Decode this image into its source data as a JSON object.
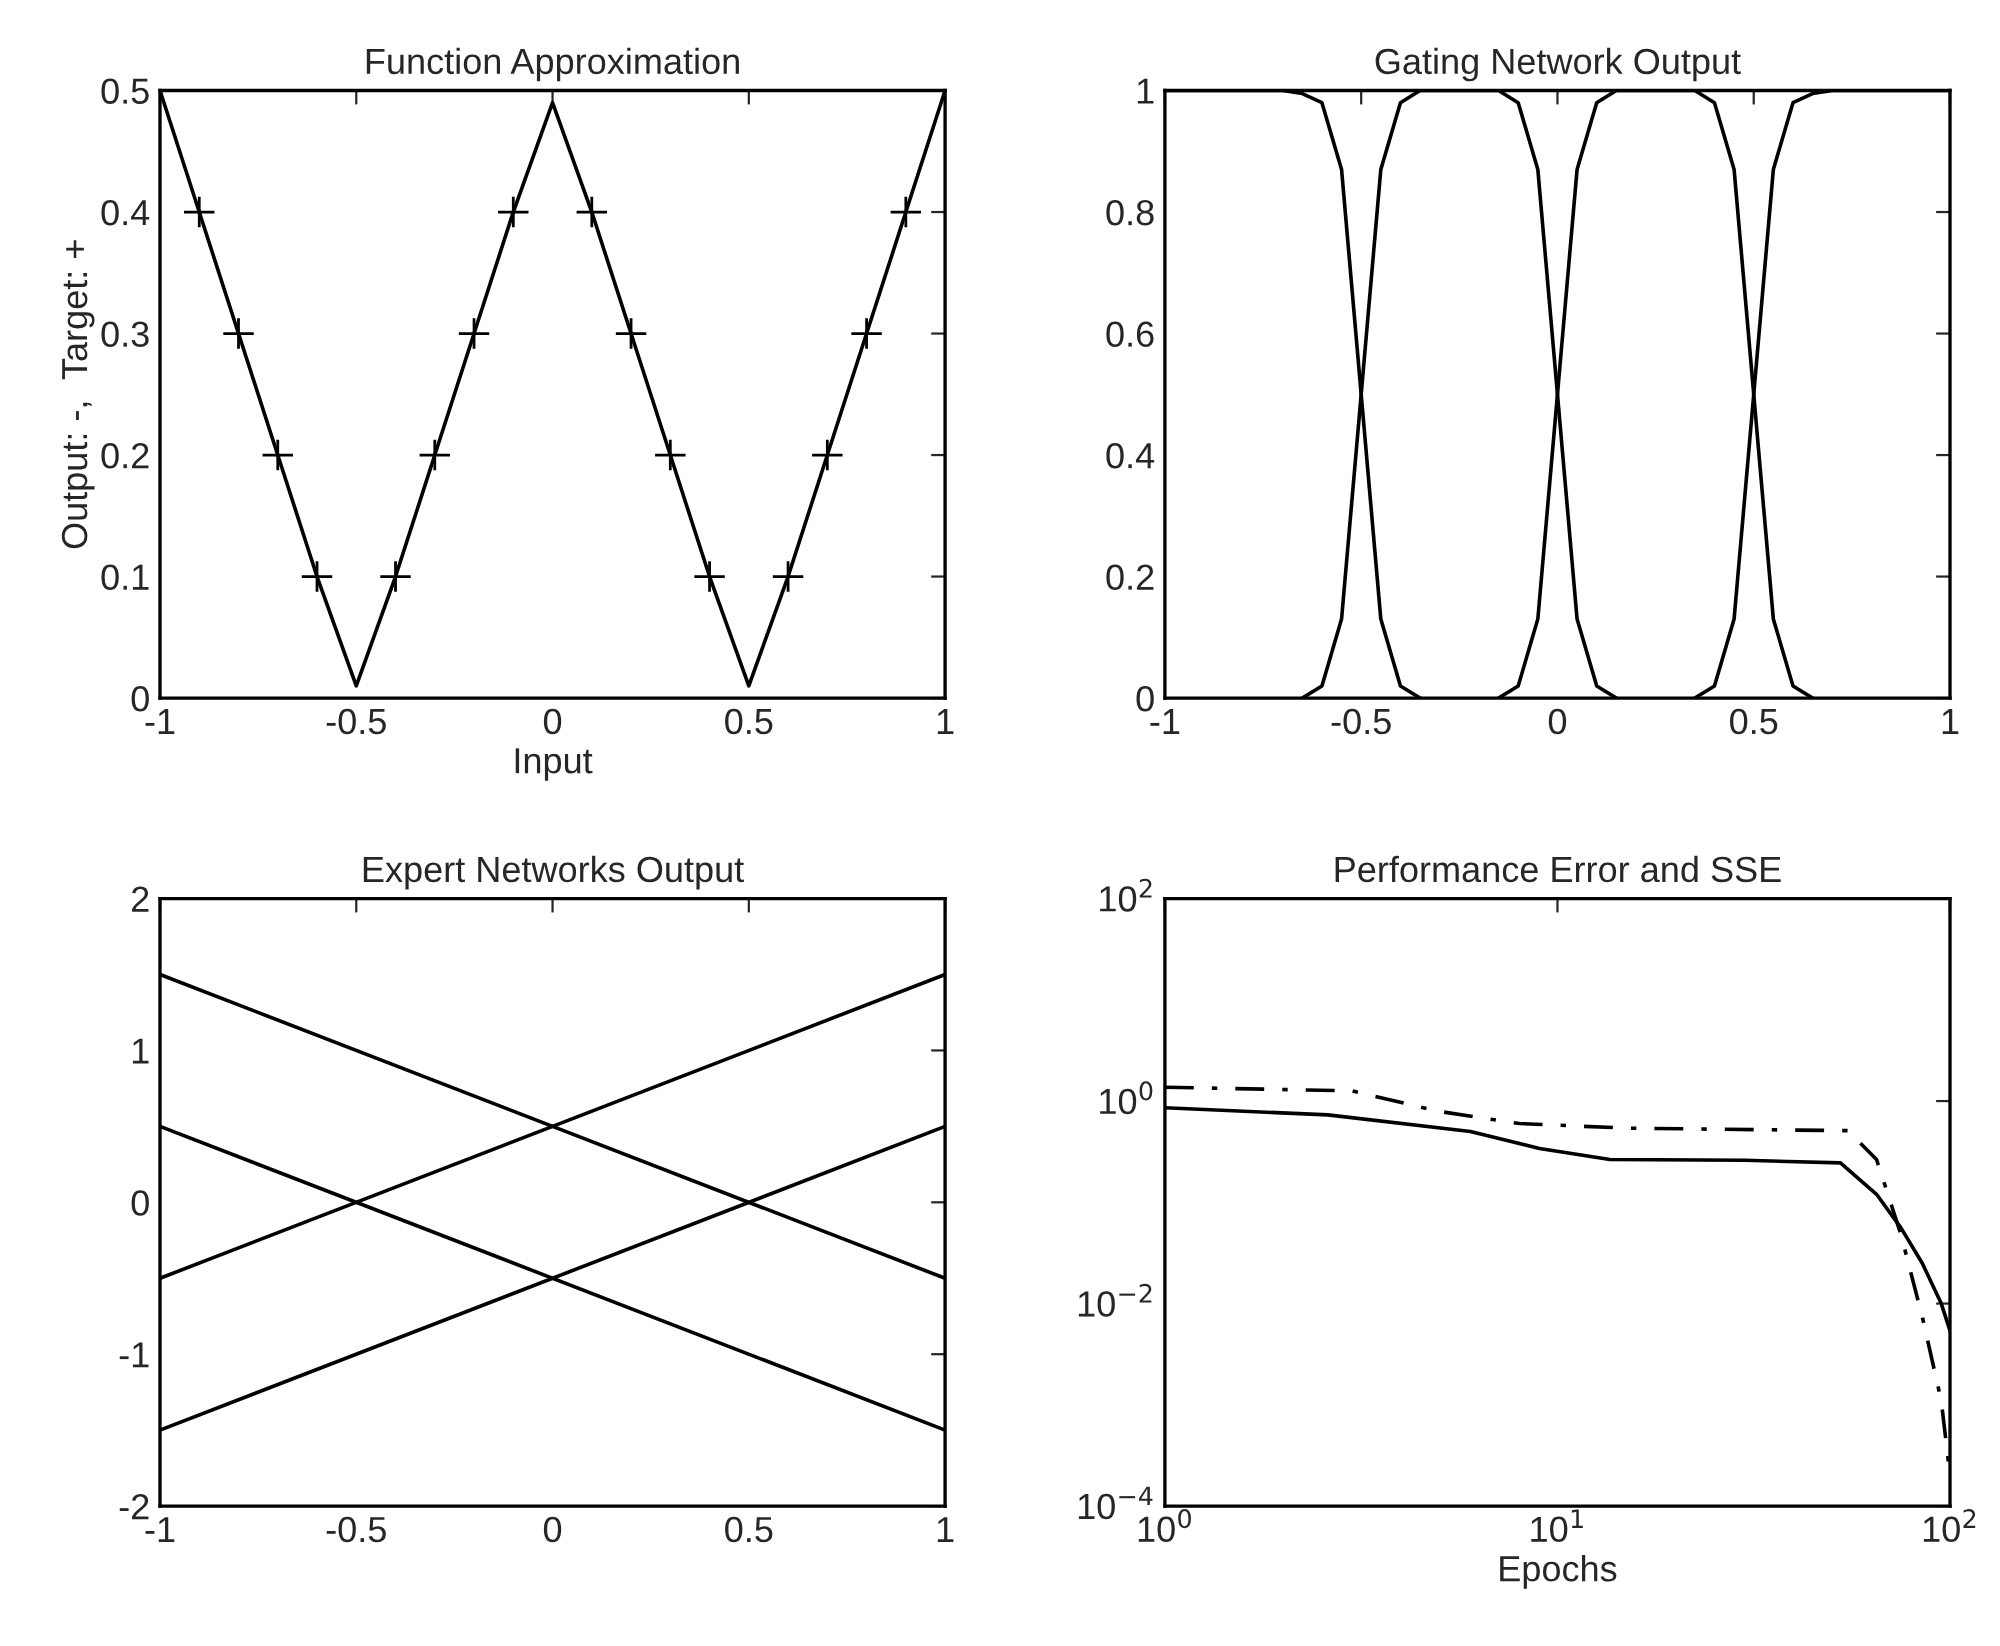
{
  "chart_data": [
    {
      "type": "line",
      "title": "Function Approximation",
      "xlabel": "Input",
      "ylabel": "Output: -,  Target: +",
      "xlim": [
        -1,
        1
      ],
      "ylim": [
        0,
        0.5
      ],
      "xticks": [
        -1,
        -0.5,
        0,
        0.5,
        1
      ],
      "yticks": [
        0,
        0.1,
        0.2,
        0.3,
        0.4,
        0.5
      ],
      "grid": false,
      "legend": false,
      "series": [
        {
          "color": "#000000",
          "line_style": "solid",
          "x": [
            -1,
            -0.9,
            -0.8,
            -0.7,
            -0.6,
            -0.5,
            -0.4,
            -0.3,
            -0.2,
            -0.1,
            0,
            0.1,
            0.2,
            0.3,
            0.4,
            0.5,
            0.6,
            0.7,
            0.8,
            0.9,
            1
          ],
          "values": [
            0.5,
            0.4,
            0.3,
            0.2,
            0.1,
            0.01,
            0.1,
            0.2,
            0.3,
            0.4,
            0.49,
            0.4,
            0.3,
            0.2,
            0.1,
            0.01,
            0.1,
            0.2,
            0.3,
            0.4,
            0.5
          ]
        },
        {
          "type": "scatter",
          "color": "#000000",
          "marker": "cross",
          "x": [
            -0.9,
            -0.8,
            -0.7,
            -0.6,
            -0.4,
            -0.3,
            -0.2,
            -0.1,
            0.1,
            0.2,
            0.3,
            0.4,
            0.6,
            0.7,
            0.8,
            0.9
          ],
          "values": [
            0.4,
            0.3,
            0.2,
            0.1,
            0.1,
            0.2,
            0.3,
            0.4,
            0.4,
            0.3,
            0.2,
            0.1,
            0.1,
            0.2,
            0.3,
            0.4
          ]
        }
      ]
    },
    {
      "type": "line",
      "title": "Gating Network Output",
      "xlim": [
        -1,
        1
      ],
      "ylim": [
        0,
        1
      ],
      "xticks": [
        -1,
        -0.5,
        0,
        0.5,
        1
      ],
      "yticks": [
        0,
        0.2,
        0.4,
        0.6,
        0.8,
        1
      ],
      "grid": false,
      "legend": false,
      "series": [
        {
          "color": "#000000",
          "x": [
            -1,
            -0.7,
            -0.65,
            -0.6,
            -0.55,
            -0.5,
            -0.45,
            -0.4,
            -0.35
          ],
          "values": [
            1,
            1,
            0.995,
            0.98,
            0.87,
            0.5,
            0.13,
            0.02,
            0.0
          ]
        },
        {
          "color": "#000000",
          "x": [
            -0.65,
            -0.6,
            -0.55,
            -0.5,
            -0.45,
            -0.4,
            -0.35,
            -0.15,
            -0.1,
            -0.05,
            0,
            0.05,
            0.1,
            0.15
          ],
          "values": [
            0,
            0.02,
            0.13,
            0.5,
            0.87,
            0.98,
            1,
            1,
            0.98,
            0.87,
            0.5,
            0.13,
            0.02,
            0
          ]
        },
        {
          "color": "#000000",
          "x": [
            -0.15,
            -0.1,
            -0.05,
            0,
            0.05,
            0.1,
            0.15,
            0.35,
            0.4,
            0.45,
            0.5,
            0.55,
            0.6,
            0.65
          ],
          "values": [
            0,
            0.02,
            0.13,
            0.5,
            0.87,
            0.98,
            1,
            1,
            0.98,
            0.87,
            0.5,
            0.13,
            0.02,
            0
          ]
        },
        {
          "color": "#000000",
          "x": [
            0.35,
            0.4,
            0.45,
            0.5,
            0.55,
            0.6,
            0.65,
            0.7,
            1
          ],
          "values": [
            0,
            0.02,
            0.13,
            0.5,
            0.87,
            0.98,
            0.995,
            1,
            1
          ]
        }
      ]
    },
    {
      "type": "line",
      "title": "Expert Networks Output",
      "xlim": [
        -1,
        1
      ],
      "ylim": [
        -2,
        2
      ],
      "xticks": [
        -1,
        -0.5,
        0,
        0.5,
        1
      ],
      "yticks": [
        -2,
        -1,
        0,
        1,
        2
      ],
      "grid": false,
      "legend": false,
      "series": [
        {
          "color": "#000000",
          "x": [
            -1,
            1
          ],
          "values": [
            1.5,
            -0.5
          ]
        },
        {
          "color": "#000000",
          "x": [
            -1,
            1
          ],
          "values": [
            0.5,
            -1.5
          ]
        },
        {
          "color": "#000000",
          "x": [
            -1,
            1
          ],
          "values": [
            -0.5,
            1.5
          ]
        },
        {
          "color": "#000000",
          "x": [
            -1,
            1
          ],
          "values": [
            -1.5,
            0.5
          ]
        }
      ]
    },
    {
      "type": "line",
      "title": "Performance Error and SSE",
      "xlabel": "Epochs",
      "log": "xy",
      "xlim": [
        1,
        100
      ],
      "ylim": [
        0.0001,
        100
      ],
      "xticks": [
        {
          "value": 1,
          "label": "10$^{0}$"
        },
        {
          "value": 10,
          "label": "10$^{1}$"
        },
        {
          "value": 100,
          "label": "10$^{2}$"
        }
      ],
      "yticks": [
        {
          "value": 0.0001,
          "label": "10$^{−4}$"
        },
        {
          "value": 0.01,
          "label": "10$^{−2}$"
        },
        {
          "value": 1,
          "label": "10$^{0}$"
        },
        {
          "value": 100,
          "label": "10$^{2}$"
        }
      ],
      "grid": false,
      "legend": false,
      "series": [
        {
          "color": "#000000",
          "line_style": "solid",
          "x": [
            1,
            2.6,
            6,
            9,
            13.6,
            30,
            52.6,
            65,
            75,
            85,
            95,
            100
          ],
          "values": [
            0.86,
            0.73,
            0.5,
            0.34,
            0.265,
            0.26,
            0.245,
            0.12,
            0.056,
            0.025,
            0.01,
            0.0054
          ]
        },
        {
          "color": "#000000",
          "line_style": "dashed",
          "x": [
            1,
            3,
            5,
            8,
            15,
            55,
            65,
            75,
            85,
            95,
            100
          ],
          "values": [
            1.37,
            1.26,
            0.79,
            0.6,
            0.54,
            0.51,
            0.265,
            0.048,
            0.0074,
            0.0011,
            0.0002
          ]
        }
      ]
    }
  ]
}
